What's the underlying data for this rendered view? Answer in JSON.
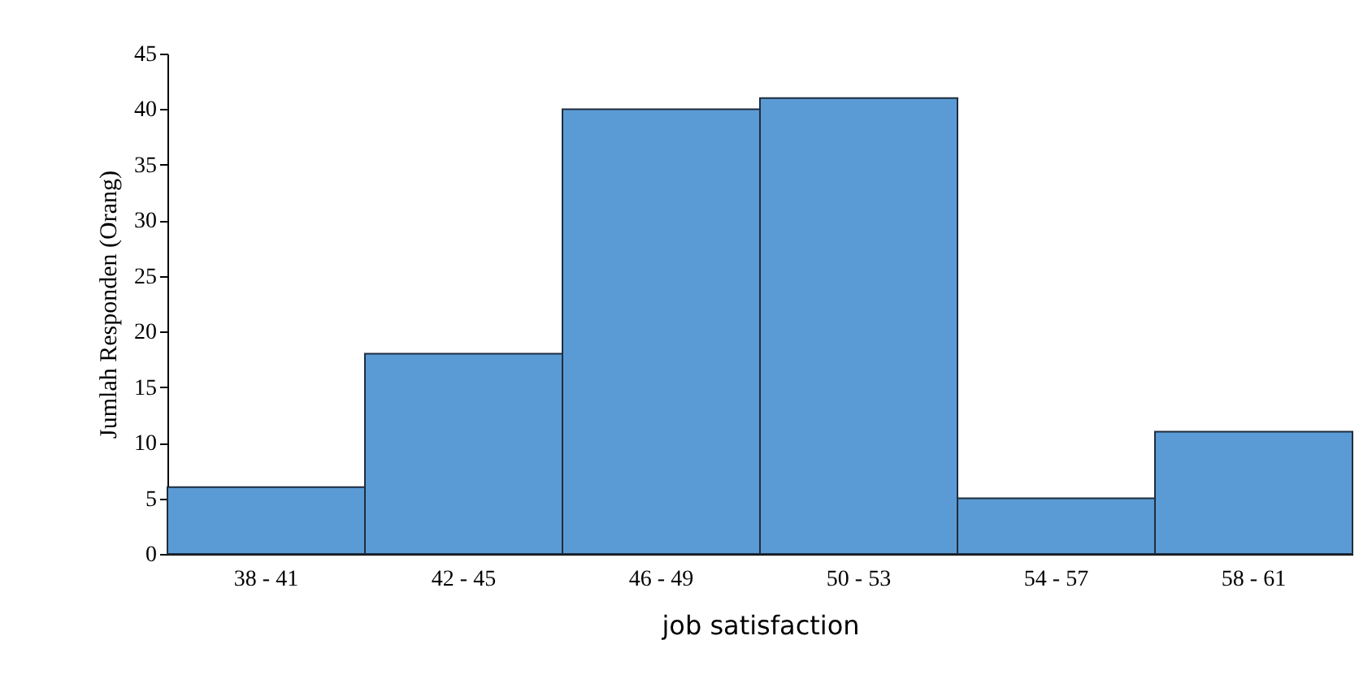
{
  "chart_data": {
    "type": "bar",
    "xlabel": "job satisfaction",
    "ylabel": "Jumlah Responden (Orang)",
    "categories": [
      "38 - 41",
      "42 - 45",
      "46 - 49",
      "50 - 53",
      "54 - 57",
      "58 - 61"
    ],
    "values": [
      6,
      18,
      40,
      41,
      5,
      11
    ],
    "color": "#5b9bd5",
    "ylim": [
      0,
      45
    ],
    "yticks": [
      0,
      5,
      10,
      15,
      20,
      25,
      30,
      35,
      40,
      45
    ],
    "grid": false
  }
}
